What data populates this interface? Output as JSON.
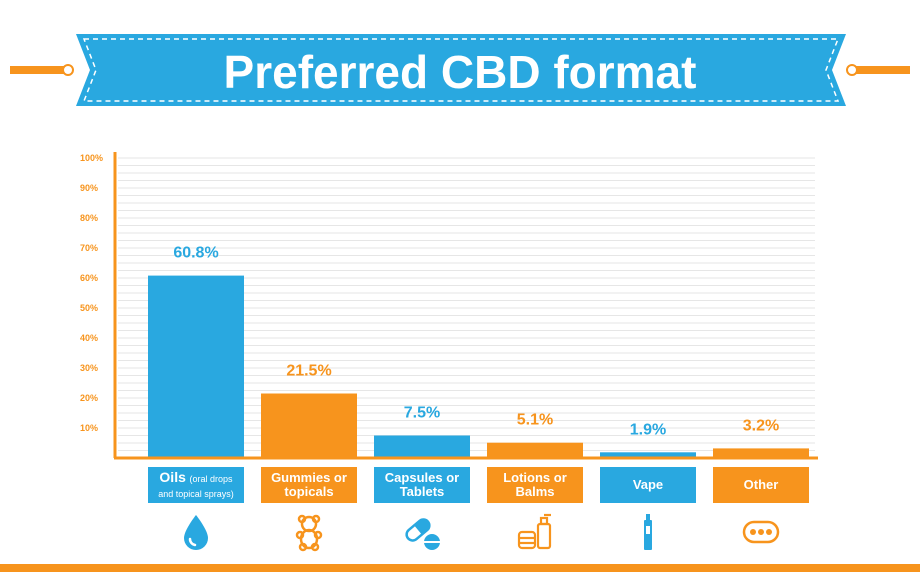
{
  "title": "Preferred CBD format",
  "colors": {
    "blue": "#29a8e0",
    "orange": "#f7941d",
    "grid": "#e6e6e6"
  },
  "chart_data": {
    "type": "bar",
    "title": "Preferred CBD format",
    "ylim": [
      0,
      100
    ],
    "yticks": [
      "100%",
      "90%",
      "80%",
      "70%",
      "60%",
      "50%",
      "40%",
      "30%",
      "20%",
      "10%"
    ],
    "categories": [
      "Oils (oral drops and topical sprays)",
      "Gummies or topicals",
      "Capsules or Tablets",
      "Lotions or Balms",
      "Vape",
      "Other"
    ],
    "values": [
      60.8,
      21.5,
      7.5,
      5.1,
      1.9,
      3.2
    ],
    "value_labels": [
      "60.8%",
      "21.5%",
      "7.5%",
      "5.1%",
      "1.9%",
      "3.2%"
    ],
    "bar_colors": [
      "#29a8e0",
      "#f7941d",
      "#29a8e0",
      "#f7941d",
      "#29a8e0",
      "#f7941d"
    ],
    "grid": true
  },
  "category_labels": [
    {
      "main": "Oils",
      "small": "(oral drops",
      "line2": "and topical sprays)",
      "icon": "drop-icon"
    },
    {
      "main": "Gummies or",
      "line2": "topicals",
      "icon": "gummy-bear-icon"
    },
    {
      "main": "Capsules or",
      "line2": "Tablets",
      "icon": "pill-icon"
    },
    {
      "main": "Lotions or",
      "line2": "Balms",
      "icon": "lotion-jar-icon"
    },
    {
      "main": "Vape",
      "line2": "",
      "icon": "vape-pen-icon"
    },
    {
      "main": "Other",
      "line2": "",
      "icon": "more-dots-icon"
    }
  ]
}
